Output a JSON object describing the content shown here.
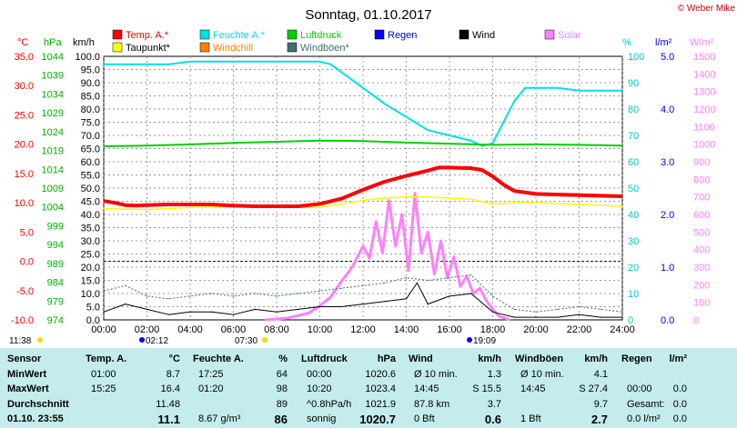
{
  "chart_data": {
    "type": "line",
    "title": "Sonntag, 01.10.2017",
    "copyright": "© Weber Mike",
    "x_ticks": [
      "00:00",
      "02:00",
      "04:00",
      "06:00",
      "08:00",
      "10:00",
      "12:00",
      "14:00",
      "16:00",
      "18:00",
      "20:00",
      "22:00",
      "24:00"
    ],
    "axes": {
      "temp": {
        "unit": "°C",
        "ticks": [
          "35.0",
          "30.0",
          "25.0",
          "20.0",
          "15.0",
          "10.0",
          "5.0",
          "0.0",
          "-5.0",
          "-10.0"
        ],
        "range": [
          -10,
          35
        ],
        "color": "#ff0000"
      },
      "pressure": {
        "unit": "hPa",
        "ticks": [
          "1044",
          "1039",
          "1034",
          "1029",
          "1024",
          "1019",
          "1014",
          "1009",
          "1004",
          "999",
          "994",
          "989",
          "984",
          "979",
          "974"
        ],
        "range": [
          974,
          1044
        ],
        "color": "#00b000"
      },
      "wind": {
        "unit": "km/h",
        "ticks": [
          "100.0",
          "95.0",
          "90.0",
          "85.0",
          "80.0",
          "75.0",
          "70.0",
          "65.0",
          "60.0",
          "55.0",
          "50.0",
          "45.0",
          "40.0",
          "35.0",
          "30.0",
          "25.0",
          "20.0",
          "15.0",
          "10.0",
          "5.0",
          "0.0"
        ],
        "range": [
          0,
          100
        ],
        "color": "#000000"
      },
      "humidity": {
        "unit": "%",
        "ticks": [
          "100",
          "90",
          "80",
          "70",
          "60",
          "50",
          "40",
          "30",
          "20",
          "10",
          "0"
        ],
        "range": [
          0,
          100
        ],
        "color": "#00c8c8"
      },
      "rain": {
        "unit": "l/m²",
        "ticks": [
          "5.0",
          "4.0",
          "3.0",
          "2.0",
          "1.0",
          "0.0"
        ],
        "range": [
          0,
          5
        ],
        "color": "#0000ff"
      },
      "solar": {
        "unit": "W/m²",
        "ticks": [
          "1500",
          "1400",
          "1300",
          "1200",
          "1100",
          "1000",
          "900",
          "800",
          "700",
          "600",
          "500",
          "400",
          "300",
          "200",
          "100",
          "0"
        ],
        "range": [
          0,
          1500
        ],
        "color": "#ff80ff"
      }
    },
    "legend": [
      {
        "name": "Temp. A.*",
        "color": "#ff0000"
      },
      {
        "name": "Feuchte A.*",
        "color": "#00e0e0"
      },
      {
        "name": "Luftdruck",
        "color": "#00d000"
      },
      {
        "name": "Regen",
        "color": "#0000ff"
      },
      {
        "name": "Wind",
        "color": "#000000"
      },
      {
        "name": "Solar",
        "color": "#ff80ff"
      },
      {
        "name": "Taupunkt*",
        "color": "#ffff00"
      },
      {
        "name": "Windchill",
        "color": "#ff8000"
      },
      {
        "name": "Windböen*",
        "color": "#407070"
      }
    ],
    "series": [
      {
        "name": "Temp. A.*",
        "axis": "temp",
        "x": [
          0,
          0.5,
          1,
          1.5,
          2,
          3,
          4,
          5,
          6,
          7,
          8,
          9,
          10,
          11,
          12,
          13,
          14,
          15,
          15.5,
          16,
          17,
          17.5,
          18,
          18.5,
          19,
          20,
          21,
          22,
          23,
          24
        ],
        "values": [
          10.3,
          10.0,
          9.6,
          9.5,
          9.6,
          9.7,
          9.7,
          9.7,
          9.5,
          9.4,
          9.4,
          9.4,
          9.8,
          10.7,
          12.2,
          13.6,
          14.6,
          15.5,
          16.0,
          16.0,
          15.9,
          15.6,
          14.5,
          13.1,
          12.0,
          11.5,
          11.4,
          11.3,
          11.2,
          11.1
        ]
      },
      {
        "name": "Feuchte A.*",
        "axis": "humidity",
        "x": [
          0,
          1,
          2,
          3,
          4,
          5,
          6,
          7,
          8,
          9,
          10,
          10.5,
          11,
          12,
          13,
          14,
          15,
          16,
          17,
          17.5,
          18,
          18.5,
          19,
          19.5,
          20,
          21,
          22,
          23,
          24
        ],
        "values": [
          97,
          97,
          97,
          97,
          98,
          98,
          98,
          98,
          98,
          98,
          98,
          97,
          94,
          88,
          82,
          77,
          72,
          70,
          68,
          66,
          67,
          75,
          83,
          88,
          88,
          88,
          87,
          87,
          87
        ]
      },
      {
        "name": "Luftdruck",
        "axis": "pressure",
        "x": [
          0,
          2,
          4,
          6,
          8,
          10,
          12,
          14,
          16,
          18,
          20,
          22,
          24
        ],
        "values": [
          1020.1,
          1020.3,
          1020.6,
          1021.0,
          1021.3,
          1021.6,
          1021.5,
          1021.1,
          1020.8,
          1020.5,
          1020.6,
          1020.5,
          1020.3
        ]
      },
      {
        "name": "Taupunkt*",
        "axis": "temp",
        "x": [
          0,
          2,
          4,
          6,
          8,
          10,
          11,
          12,
          13,
          14,
          15,
          16,
          17,
          18,
          19,
          20,
          22,
          24
        ],
        "values": [
          9.0,
          8.8,
          9.2,
          9.3,
          9.2,
          9.2,
          9.8,
          10.4,
          10.8,
          11.0,
          11.0,
          10.8,
          10.6,
          9.8,
          10.0,
          10.0,
          9.7,
          9.4
        ]
      },
      {
        "name": "Wind",
        "axis": "wind",
        "x": [
          0,
          1,
          2,
          3,
          4,
          5,
          6,
          7,
          8,
          9,
          10,
          11,
          12,
          13,
          14,
          14.5,
          15,
          16,
          17,
          18,
          19,
          20,
          21,
          22,
          23,
          24
        ],
        "values": [
          3,
          6,
          4,
          2,
          3,
          3,
          2,
          4,
          3,
          4,
          5,
          5,
          6,
          7,
          8,
          14,
          6,
          9,
          10,
          3,
          1,
          1,
          1,
          2,
          1,
          1
        ]
      },
      {
        "name": "Windböen*",
        "axis": "wind",
        "x": [
          0,
          1,
          2,
          3,
          4,
          5,
          6,
          7,
          8,
          9,
          10,
          11,
          12,
          13,
          14,
          15,
          16,
          17,
          18,
          19,
          20,
          21,
          22,
          23,
          24
        ],
        "values": [
          11,
          13,
          9,
          8,
          9,
          10,
          9,
          10,
          9,
          10,
          11,
          12,
          13,
          14,
          16,
          15,
          16,
          17,
          9,
          4,
          3,
          4,
          5,
          4,
          3
        ]
      },
      {
        "name": "Solar",
        "axis": "solar",
        "x": [
          7.5,
          8.5,
          9.5,
          10,
          10.5,
          11,
          11.5,
          12,
          12.3,
          12.6,
          12.9,
          13.2,
          13.5,
          13.8,
          14.1,
          14.4,
          14.7,
          15.0,
          15.3,
          15.6,
          15.9,
          16.2,
          16.5,
          16.8,
          17.1,
          17.4,
          17.7,
          18.0,
          18.3,
          18.8
        ],
        "values": [
          0,
          10,
          40,
          80,
          130,
          220,
          300,
          420,
          350,
          560,
          380,
          680,
          420,
          600,
          280,
          720,
          380,
          500,
          260,
          450,
          240,
          360,
          190,
          250,
          150,
          180,
          110,
          60,
          20,
          0
        ]
      }
    ],
    "start_marks": [
      {
        "label": "11:38",
        "color": "#ffd700"
      },
      {
        "label": "02:12",
        "color": "#0000ff"
      },
      {
        "label": "07:30",
        "color": "#ffd700"
      },
      {
        "label": "19:09",
        "color": "#0000ff"
      }
    ]
  },
  "table": {
    "headers": [
      [
        "Sensor",
        ""
      ],
      [
        "Temp. A.",
        "°C"
      ],
      [
        "Feuchte A.",
        "%"
      ],
      [
        "Luftdruck",
        "hPa"
      ],
      [
        "Wind",
        "km/h"
      ],
      [
        "Windböen",
        "km/h"
      ],
      [
        "Regen",
        "l/m²"
      ]
    ],
    "rows": [
      {
        "label": "MinWert",
        "cells": [
          [
            "01:00",
            "8.7"
          ],
          [
            "17:25",
            "64"
          ],
          [
            "00:00",
            "1020.6"
          ],
          [
            "Ø 10 min.",
            "1.3"
          ],
          [
            "Ø 10 min.",
            "4.1"
          ],
          [
            "",
            ""
          ]
        ]
      },
      {
        "label": "MaxWert",
        "cells": [
          [
            "15:25",
            "16.4"
          ],
          [
            "01:20",
            "98"
          ],
          [
            "10:20",
            "1023.4"
          ],
          [
            "14:45",
            "S 15.5"
          ],
          [
            "14:45",
            "S 27.4"
          ],
          [
            "00:00",
            "0.0"
          ]
        ]
      },
      {
        "label": "Durchschnitt",
        "cells": [
          [
            "",
            "11.48"
          ],
          [
            "",
            "89"
          ],
          [
            "^0.8hPa/h",
            "1021.9"
          ],
          [
            "87.8 km",
            "3.7"
          ],
          [
            "",
            "9.7"
          ],
          [
            "Gesamt:",
            "0.0"
          ]
        ]
      },
      {
        "label": "01.10. 23:55",
        "cells": [
          [
            "",
            "11.1"
          ],
          [
            "8.67 g/m³",
            "86"
          ],
          [
            "sonnig",
            "1020.7"
          ],
          [
            "0 Bft",
            "0.6"
          ],
          [
            "1 Bft",
            "2.7"
          ],
          [
            "0.0 l/m²",
            "0.0"
          ]
        ]
      }
    ]
  }
}
